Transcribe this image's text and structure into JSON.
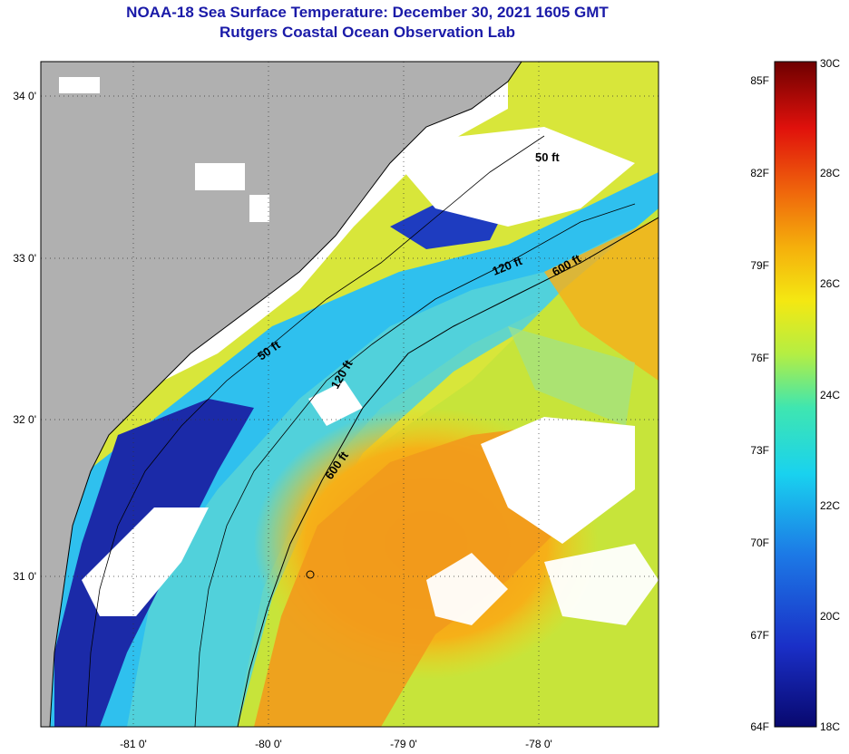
{
  "title": {
    "line1": "NOAA-18 Sea Surface Temperature:  December 30, 2021 1605 GMT",
    "line2": "Rutgers Coastal Ocean Observation Lab"
  },
  "map": {
    "lon_labels": [
      "-81 0'",
      "-80 0'",
      "-79 0'",
      "-78 0'"
    ],
    "lat_labels": [
      "34 0'",
      "33 0'",
      "32 0'",
      "31 0'"
    ],
    "contours": [
      "50 ft",
      "120 ft",
      "600 ft",
      "50 ft",
      "120 ft",
      "600 ft"
    ],
    "colors": {
      "land": "#b0b0b0",
      "cloud": "#ffffff",
      "cold": "#1b2aa8",
      "warm": "#f29a1c"
    }
  },
  "colorbar": {
    "f_labels": [
      "85F",
      "82F",
      "79F",
      "76F",
      "73F",
      "70F",
      "67F",
      "64F"
    ],
    "c_labels": [
      "30C",
      "28C",
      "26C",
      "24C",
      "22C",
      "20C",
      "18C"
    ]
  }
}
